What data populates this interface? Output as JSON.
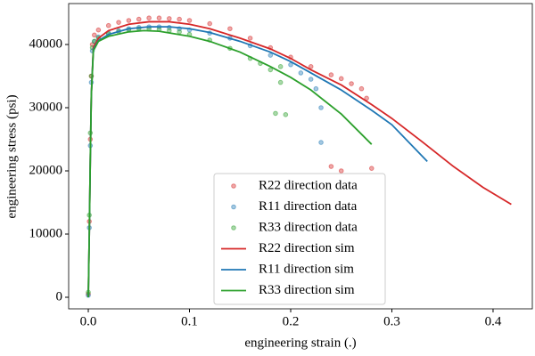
{
  "chart_data": {
    "type": "scatter",
    "xlabel": "engineering strain (.)",
    "ylabel": "engineering stress (psi)",
    "xlim": [
      -0.0194,
      0.4388
    ],
    "ylim": [
      -1830,
      46480
    ],
    "xticks": [
      {
        "value": 0,
        "label": "0.0"
      },
      {
        "value": 0.1,
        "label": "0.1"
      },
      {
        "value": 0.2,
        "label": "0.2"
      },
      {
        "value": 0.3,
        "label": "0.3"
      },
      {
        "value": 0.4,
        "label": "0.4"
      }
    ],
    "yticks": [
      0,
      10000,
      20000,
      30000,
      40000
    ],
    "legend": "lower center",
    "series": [
      {
        "name": "R22 direction data",
        "type": "scatter",
        "color": "#d62728",
        "x": [
          0,
          0.001,
          0.002,
          0.003,
          0.004,
          0.006,
          0.01,
          0.02,
          0.03,
          0.04,
          0.05,
          0.06,
          0.07,
          0.08,
          0.09,
          0.1,
          0.12,
          0.14,
          0.16,
          0.18,
          0.2,
          0.22,
          0.24,
          0.25,
          0.26,
          0.27,
          0.275,
          0.24,
          0.25,
          0.28
        ],
        "values": [
          500,
          12000,
          25000,
          35000,
          40000,
          41500,
          42300,
          43000,
          43500,
          43800,
          44000,
          44200,
          44200,
          44100,
          44000,
          43800,
          43300,
          42500,
          41000,
          39500,
          38000,
          36500,
          35200,
          34600,
          33800,
          33000,
          31500,
          20700,
          20000,
          20400
        ]
      },
      {
        "name": "R11 direction data",
        "type": "scatter",
        "color": "#1f77b4",
        "x": [
          0,
          0.001,
          0.002,
          0.003,
          0.004,
          0.006,
          0.01,
          0.02,
          0.03,
          0.04,
          0.05,
          0.06,
          0.07,
          0.08,
          0.09,
          0.1,
          0.12,
          0.14,
          0.16,
          0.18,
          0.2,
          0.21,
          0.22,
          0.225,
          0.23,
          0.23
        ],
        "values": [
          300,
          11000,
          24000,
          34000,
          39000,
          40500,
          41200,
          41800,
          42200,
          42500,
          42700,
          42800,
          42800,
          42700,
          42500,
          42300,
          41800,
          41000,
          39800,
          38300,
          36800,
          35500,
          34500,
          33000,
          30000,
          24500
        ]
      },
      {
        "name": "R33 direction data",
        "type": "scatter",
        "color": "#2ca02c",
        "x": [
          0,
          0.001,
          0.002,
          0.003,
          0.004,
          0.006,
          0.01,
          0.02,
          0.03,
          0.04,
          0.05,
          0.06,
          0.07,
          0.08,
          0.09,
          0.1,
          0.12,
          0.14,
          0.16,
          0.17,
          0.18,
          0.19,
          0.19,
          0.185,
          0.195
        ],
        "values": [
          800,
          13000,
          26000,
          35000,
          39500,
          40500,
          41000,
          41700,
          42000,
          42300,
          42500,
          42500,
          42400,
          42200,
          42000,
          41600,
          40700,
          39400,
          37800,
          37000,
          36000,
          34000,
          36500,
          29100,
          28900
        ]
      },
      {
        "name": "R22 direction sim",
        "type": "line",
        "color": "#d62728",
        "x": [
          0,
          0.001,
          0.002,
          0.003,
          0.005,
          0.01,
          0.02,
          0.04,
          0.06,
          0.08,
          0.1,
          0.12,
          0.15,
          0.18,
          0.2,
          0.22,
          0.25,
          0.28,
          0.3,
          0.33,
          0.36,
          0.39,
          0.418
        ],
        "values": [
          0,
          10000,
          22000,
          32000,
          39500,
          41000,
          42200,
          43200,
          43600,
          43600,
          43200,
          42500,
          41000,
          39300,
          37800,
          36000,
          33600,
          30500,
          28300,
          24600,
          20800,
          17400,
          14700
        ]
      },
      {
        "name": "R11 direction sim",
        "type": "line",
        "color": "#1f77b4",
        "x": [
          0,
          0.001,
          0.002,
          0.003,
          0.005,
          0.01,
          0.02,
          0.04,
          0.06,
          0.08,
          0.1,
          0.12,
          0.15,
          0.18,
          0.2,
          0.22,
          0.25,
          0.28,
          0.3,
          0.335
        ],
        "values": [
          0,
          10000,
          22000,
          32000,
          39200,
          40600,
          41600,
          42500,
          42800,
          42800,
          42500,
          41900,
          40500,
          38800,
          37300,
          35500,
          32800,
          29600,
          27300,
          21500
        ]
      },
      {
        "name": "R33 direction sim",
        "type": "line",
        "color": "#2ca02c",
        "x": [
          0,
          0.001,
          0.002,
          0.003,
          0.005,
          0.01,
          0.02,
          0.04,
          0.055,
          0.07,
          0.1,
          0.12,
          0.15,
          0.18,
          0.2,
          0.22,
          0.25,
          0.28
        ],
        "values": [
          0,
          10000,
          22000,
          32000,
          39000,
          40500,
          41300,
          42000,
          42200,
          42100,
          41300,
          40500,
          38800,
          36500,
          34800,
          32800,
          29000,
          24200
        ]
      }
    ]
  }
}
